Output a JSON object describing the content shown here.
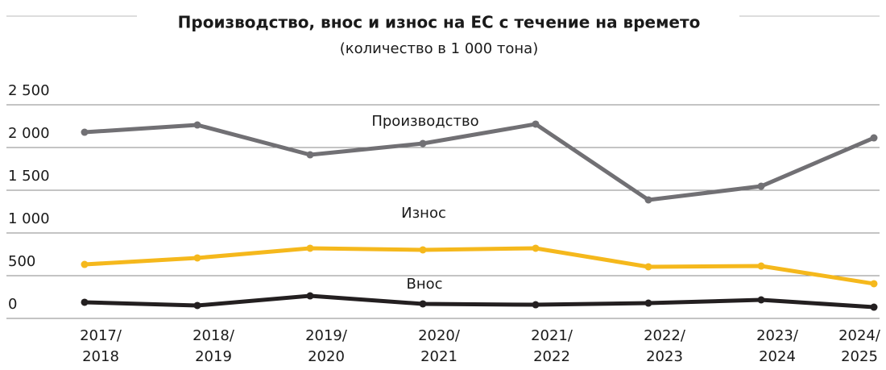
{
  "chart_data": {
    "type": "line",
    "title": "Производство, внос и износ на ЕС с течение на времето",
    "subtitle": "(количество в 1 000 тона)",
    "categories": [
      "2017/\n2018",
      "2018/\n2019",
      "2019/\n2020",
      "2020/\n2021",
      "2021/\n2022",
      "2022/\n2023",
      "2023/\n2024",
      "2024/\n2025"
    ],
    "series": [
      {
        "name": "Производство",
        "color": "#717074",
        "values": [
          2179,
          2264,
          1915,
          2047,
          2274,
          1387,
          1547,
          2113
        ]
      },
      {
        "name": "Износ",
        "color": "#f5b81c",
        "values": [
          632,
          708,
          821,
          802,
          821,
          604,
          613,
          406
        ]
      },
      {
        "name": "Внос",
        "color": "#231f20",
        "values": [
          189,
          151,
          264,
          170,
          160,
          179,
          217,
          132
        ]
      }
    ],
    "ylim": [
      0,
      2500
    ],
    "yticks": [
      0,
      500,
      {
        "value": 1000,
        "label": "1 000"
      },
      {
        "value": 1500,
        "label": "1 500"
      },
      {
        "value": 2000,
        "label": "2 000"
      },
      {
        "value": 2500,
        "label": "2 500"
      }
    ],
    "grid": true
  }
}
